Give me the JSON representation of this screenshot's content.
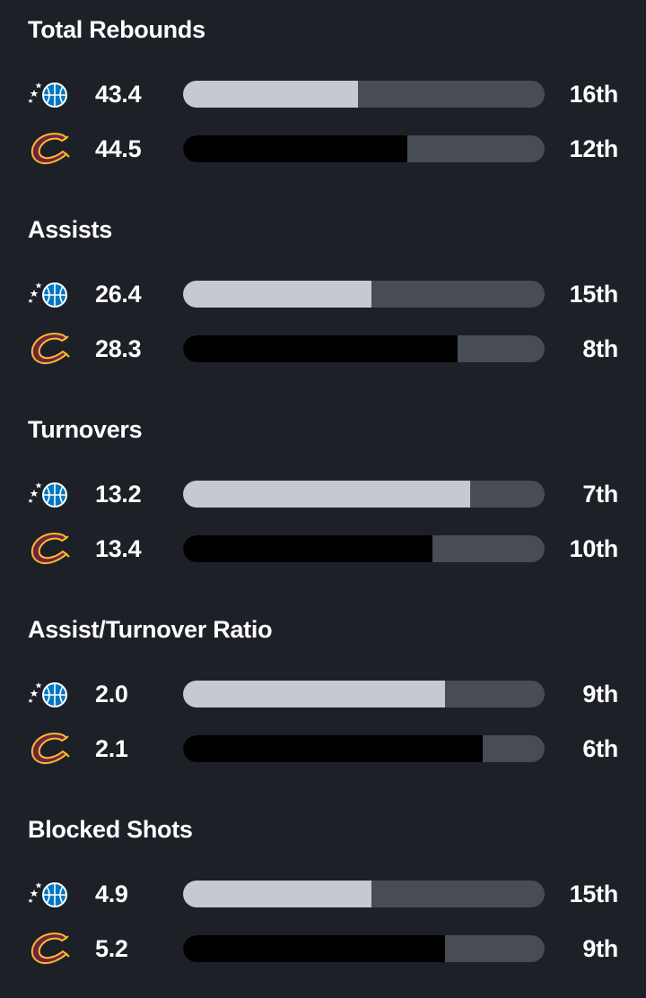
{
  "teams": {
    "magic": {
      "logo_icon": "orlando-magic-logo-icon",
      "fill_color": "#c5cad1"
    },
    "cavs": {
      "logo_icon": "cleveland-cavaliers-logo-icon",
      "fill_color": "#000000"
    }
  },
  "colors": {
    "background": "#1d2027",
    "track": "#474c55",
    "text": "#ffffff"
  },
  "sections": [
    {
      "title": "Total Rebounds",
      "rows": [
        {
          "team": "magic",
          "value": "43.4",
          "rank": "16th",
          "fill_fraction": 0.485
        },
        {
          "team": "cavs",
          "value": "44.5",
          "rank": "12th",
          "fill_fraction": 0.62
        }
      ]
    },
    {
      "title": "Assists",
      "rows": [
        {
          "team": "magic",
          "value": "26.4",
          "rank": "15th",
          "fill_fraction": 0.52
        },
        {
          "team": "cavs",
          "value": "28.3",
          "rank": "8th",
          "fill_fraction": 0.76
        }
      ]
    },
    {
      "title": "Turnovers",
      "rows": [
        {
          "team": "magic",
          "value": "13.2",
          "rank": "7th",
          "fill_fraction": 0.795
        },
        {
          "team": "cavs",
          "value": "13.4",
          "rank": "10th",
          "fill_fraction": 0.69
        }
      ]
    },
    {
      "title": "Assist/Turnover Ratio",
      "rows": [
        {
          "team": "magic",
          "value": "2.0",
          "rank": "9th",
          "fill_fraction": 0.725
        },
        {
          "team": "cavs",
          "value": "2.1",
          "rank": "6th",
          "fill_fraction": 0.83
        }
      ]
    },
    {
      "title": "Blocked Shots",
      "rows": [
        {
          "team": "magic",
          "value": "4.9",
          "rank": "15th",
          "fill_fraction": 0.52
        },
        {
          "team": "cavs",
          "value": "5.2",
          "rank": "9th",
          "fill_fraction": 0.725
        }
      ]
    }
  ]
}
